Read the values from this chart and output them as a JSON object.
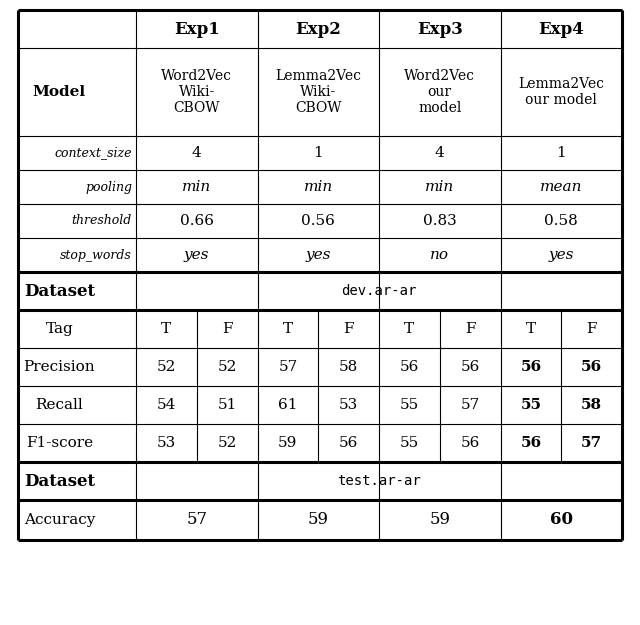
{
  "col_headers": [
    "",
    "Exp1",
    "Exp2",
    "Exp3",
    "Exp4"
  ],
  "model_row_label": "Model",
  "model_values": [
    "Word2Vec\nWiki-\nCBOW",
    "Lemma2Vec\nWiki-\nCBOW",
    "Word2Vec\nour\nmodel",
    "Lemma2Vec\nour model"
  ],
  "param_rows": [
    {
      "label": "context_size",
      "values": [
        "4",
        "1",
        "4",
        "1"
      ],
      "italic_values": false
    },
    {
      "label": "pooling",
      "values": [
        "min",
        "min",
        "min",
        "mean"
      ],
      "italic_values": true
    },
    {
      "label": "threshold",
      "values": [
        "0.66",
        "0.56",
        "0.83",
        "0.58"
      ],
      "italic_values": false
    },
    {
      "label": "stop_words",
      "values": [
        "yes",
        "yes",
        "no",
        "yes"
      ],
      "italic_values": true
    }
  ],
  "dataset1_label": "Dataset",
  "dataset1_value": "dev.ar-ar",
  "metric_rows": [
    {
      "label": "Precision",
      "values": [
        "52",
        "52",
        "57",
        "58",
        "56",
        "56",
        "56",
        "56"
      ]
    },
    {
      "label": "Recall",
      "values": [
        "54",
        "51",
        "61",
        "53",
        "55",
        "57",
        "55",
        "58"
      ]
    },
    {
      "label": "F1-score",
      "values": [
        "53",
        "52",
        "59",
        "56",
        "55",
        "56",
        "56",
        "57"
      ]
    }
  ],
  "dataset2_label": "Dataset",
  "dataset2_value": "test.ar-ar",
  "accuracy_row": {
    "label": "Accuracy",
    "values": [
      "57",
      "59",
      "59",
      "60"
    ]
  },
  "fig_width": 6.4,
  "fig_height": 6.25,
  "dpi": 100
}
